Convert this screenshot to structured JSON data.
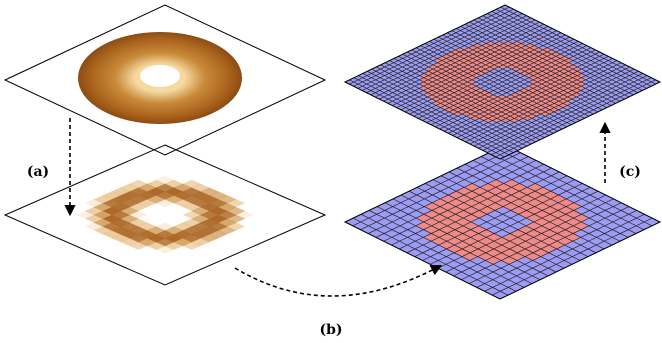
{
  "labels": {
    "a": "(a)",
    "b": "(b)",
    "c": "(c)"
  }
}
